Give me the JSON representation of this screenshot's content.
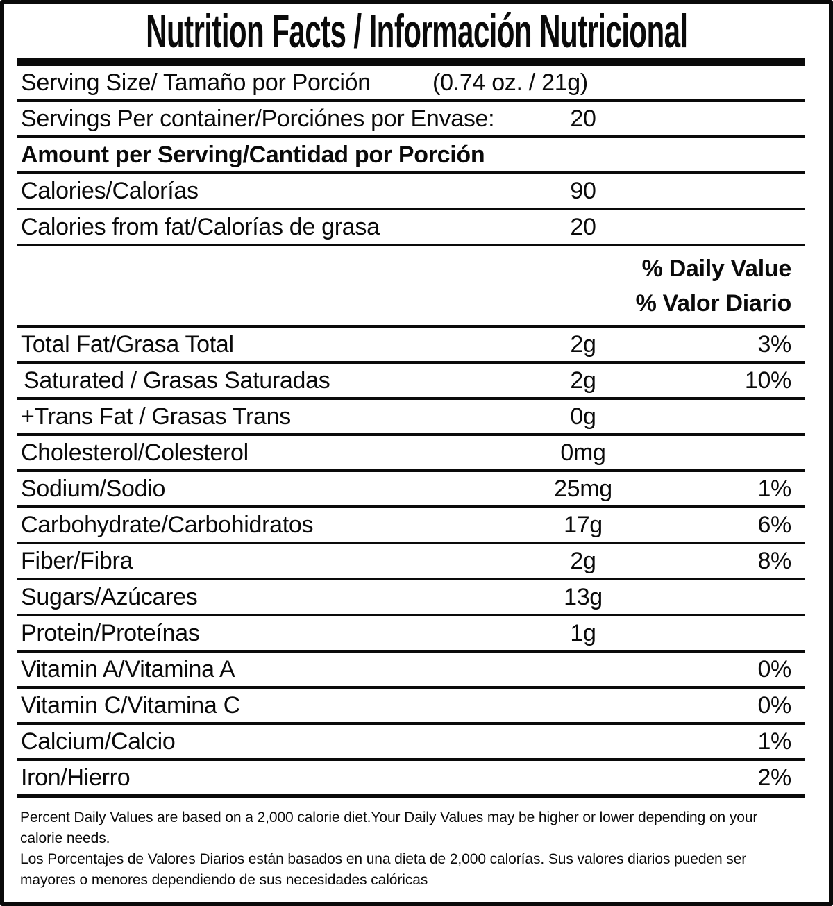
{
  "title": "Nutrition Facts / Información Nutricional",
  "serving_size": {
    "label": "Serving Size/ Tamaño por Porción",
    "value": "(0.74 oz. / 21g)"
  },
  "servings_per_container": {
    "label": "Servings Per container/Porciónes por Envase:",
    "value": "20"
  },
  "amount_per_serving_label": "Amount per Serving/Cantidad por Porción",
  "calories": {
    "label": "Calories/Calorías",
    "value": "90"
  },
  "calories_from_fat": {
    "label": "Calories from fat/Calorías de grasa",
    "value": "20"
  },
  "daily_value_header": {
    "line_en": "% Daily Value",
    "line_es": "% Valor Diario"
  },
  "nutrients": [
    {
      "label": "Total Fat/Grasa Total",
      "amount": "2g",
      "dv": "3%"
    },
    {
      "label": "Saturated / Grasas Saturadas",
      "amount": "2g",
      "dv": "10%"
    },
    {
      "label": "+Trans Fat / Grasas Trans",
      "amount": "0g",
      "dv": ""
    },
    {
      "label": "Cholesterol/Colesterol",
      "amount": "0mg",
      "dv": ""
    },
    {
      "label": "Sodium/Sodio",
      "amount": "25mg",
      "dv": "1%"
    },
    {
      "label": "Carbohydrate/Carbohidratos",
      "amount": "17g",
      "dv": "6%"
    },
    {
      "label": "Fiber/Fibra",
      "amount": "2g",
      "dv": "8%"
    },
    {
      "label": "Sugars/Azúcares",
      "amount": "13g",
      "dv": ""
    },
    {
      "label": "Protein/Proteínas",
      "amount": "1g",
      "dv": ""
    },
    {
      "label": "Vitamin A/Vitamina A",
      "amount": "",
      "dv": "0%"
    },
    {
      "label": "Vitamin C/Vitamina C",
      "amount": "",
      "dv": "0%"
    },
    {
      "label": "Calcium/Calcio",
      "amount": "",
      "dv": "1%"
    },
    {
      "label": "Iron/Hierro",
      "amount": "",
      "dv": "2%"
    }
  ],
  "footnotes": {
    "english": "Percent Daily Values are based on a 2,000 calorie diet.Your Daily Values may be higher or lower depending on your\ncalorie needs.",
    "spanish": "Los Porcentajes de Valores Diarios están basados en una dieta de 2,000 calorías. Sus valores diarios pueden ser\nmayores o menores dependiendo de sus necesidades calóricas"
  },
  "colors": {
    "text": "#0a0a0a",
    "background": "#ffffff",
    "border": "#0a0a0a"
  }
}
